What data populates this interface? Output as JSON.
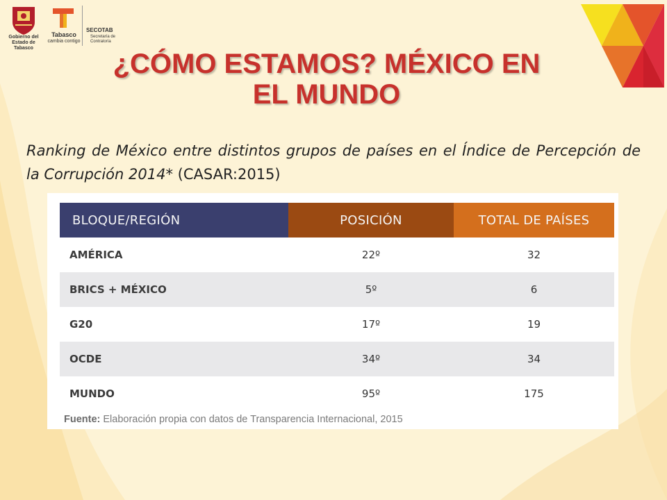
{
  "logos": {
    "gov_label": "Gobierno del Estado de Tabasco",
    "tabasco_label": "Tabasco",
    "tabasco_tagline": "cambia contigo",
    "secotab_label": "SECOTAB",
    "secotab_sub": "Secretaría de Contraloría"
  },
  "title": {
    "line1": "¿CÓMO ESTAMOS? MÉXICO EN",
    "line2": "EL MUNDO"
  },
  "intro": {
    "italic_text": "Ranking de México entre distintos grupos de países en el Índice de Percepción de la Corrupción 2014*",
    "plain_text": " (CASAR:2015)"
  },
  "table": {
    "headers": [
      "BLOQUE/REGIÓN",
      "POSICIÓN",
      "TOTAL DE PAÍSES"
    ],
    "rows": [
      [
        "AMÉRICA",
        "22º",
        "32"
      ],
      [
        "BRICS + MÉXICO",
        "5º",
        "6"
      ],
      [
        "G20",
        "17º",
        "19"
      ],
      [
        "OCDE",
        "34º",
        "34"
      ],
      [
        "MUNDO",
        "95º",
        "175"
      ]
    ]
  },
  "source": {
    "label": "Fuente:",
    "text": " Elaboración propia con datos de Transparencia Internacional, 2015"
  },
  "colors": {
    "title": "#c7312c",
    "header_region": "#3a3f6e",
    "header_position": "#9b4a12",
    "header_total": "#d46f1d",
    "row_alt": "#e8e8ea",
    "background": "#fdf3d6"
  }
}
